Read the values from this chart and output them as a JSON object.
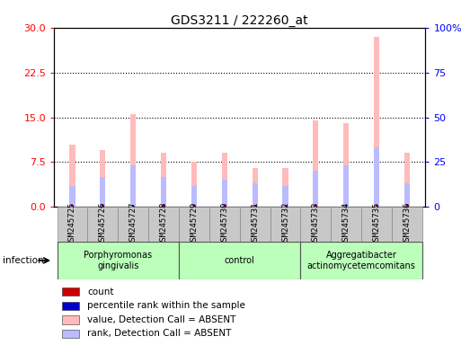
{
  "title": "GDS3211 / 222260_at",
  "samples": [
    "GSM245725",
    "GSM245726",
    "GSM245727",
    "GSM245728",
    "GSM245729",
    "GSM245730",
    "GSM245731",
    "GSM245732",
    "GSM245733",
    "GSM245734",
    "GSM245735",
    "GSM245736"
  ],
  "value_absent": [
    10.5,
    9.5,
    15.5,
    9.0,
    7.5,
    9.0,
    6.5,
    6.5,
    14.5,
    14.0,
    28.5,
    9.0
  ],
  "rank_absent_left": [
    3.5,
    5.0,
    7.0,
    5.0,
    3.5,
    4.5,
    4.0,
    3.5,
    6.0,
    7.0,
    10.0,
    4.0
  ],
  "count_val": [
    0.18,
    0.18,
    0.18,
    0.18,
    0.18,
    0.18,
    0.18,
    0.18,
    0.18,
    0.18,
    0.18,
    0.18
  ],
  "rank_narrow_left": [
    0.35,
    0.35,
    0.35,
    0.35,
    0.35,
    0.35,
    0.35,
    0.35,
    0.35,
    0.35,
    0.35,
    0.35
  ],
  "groups": [
    {
      "label": "Porphyromonas\ngingivalis",
      "start": 0,
      "end": 4
    },
    {
      "label": "control",
      "start": 4,
      "end": 8
    },
    {
      "label": "Aggregatibacter\nactinomycetemcomitans",
      "start": 8,
      "end": 12
    }
  ],
  "ylim_left": [
    0,
    30
  ],
  "ylim_right": [
    0,
    100
  ],
  "yticks_left": [
    0,
    7.5,
    15,
    22.5,
    30
  ],
  "yticks_right": [
    0,
    25,
    50,
    75,
    100
  ],
  "color_value_absent": "#ffbbbb",
  "color_rank_absent": "#bbbbff",
  "color_count": "#cc0000",
  "color_rank_narrow": "#0000cc",
  "group_color": "#bbffbb",
  "xlab_bg": "#c8c8c8"
}
